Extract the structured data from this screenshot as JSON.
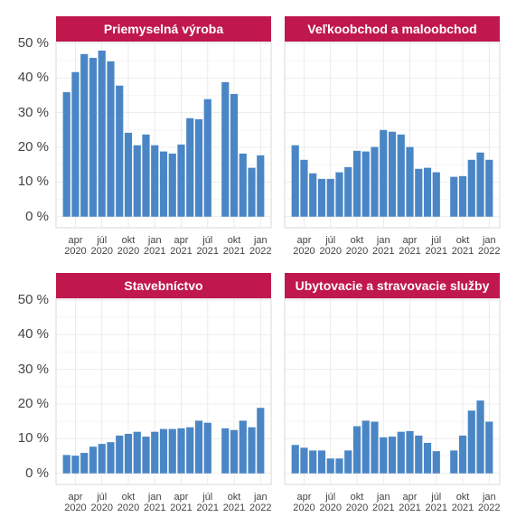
{
  "chart_data": {
    "type": "bar",
    "color": "#4a86c5",
    "header_color": "#c0184d",
    "grid": true,
    "categories": [
      null,
      "apr 2020",
      null,
      null,
      "júl 2020",
      null,
      null,
      "okt 2020",
      null,
      null,
      "jan 2021",
      null,
      null,
      "apr 2021",
      null,
      null,
      "júl 2021",
      null,
      null,
      "okt 2021",
      null,
      null,
      "jan 2022"
    ],
    "ylim": [
      -3.2,
      50.5
    ],
    "yticks": [
      {
        "value": 0,
        "label": "0 %"
      },
      {
        "value": 10,
        "label": "10 %"
      },
      {
        "value": 20,
        "label": "20 %"
      },
      {
        "value": 30,
        "label": "30 %"
      },
      {
        "value": 40,
        "label": "40 %"
      },
      {
        "value": 50,
        "label": "50 %"
      }
    ],
    "panels": [
      {
        "title": "Priemyselná výroba",
        "values": [
          35.9,
          41.7,
          46.9,
          45.8,
          47.9,
          44.8,
          37.8,
          24.2,
          20.6,
          23.7,
          20.6,
          18.8,
          18.2,
          20.8,
          28.4,
          28.1,
          33.9,
          null,
          38.8,
          35.4,
          18.2,
          14.1,
          17.7
        ]
      },
      {
        "title": "Veľkoobchod a maloobchod",
        "values": [
          20.6,
          16.4,
          12.5,
          10.9,
          10.9,
          12.8,
          14.3,
          19.0,
          18.8,
          20.1,
          25.0,
          24.5,
          23.7,
          20.1,
          13.8,
          14.1,
          12.8,
          null,
          11.5,
          11.7,
          16.4,
          18.5,
          16.4
        ]
      },
      {
        "title": "Stavebníctvo",
        "values": [
          5.3,
          5.1,
          5.9,
          7.7,
          8.5,
          9.0,
          10.9,
          11.4,
          12.0,
          10.6,
          12.0,
          12.8,
          12.8,
          13.0,
          13.3,
          15.2,
          14.6,
          null,
          13.0,
          12.5,
          15.2,
          13.3,
          18.9
        ]
      },
      {
        "title": "Ubytovacie a stravovacie služby",
        "values": [
          8.2,
          7.4,
          6.6,
          6.6,
          4.3,
          4.3,
          6.6,
          13.6,
          15.2,
          14.9,
          10.4,
          10.6,
          12.0,
          12.2,
          10.9,
          8.8,
          6.4,
          null,
          6.6,
          10.9,
          18.1,
          21.0,
          14.9
        ]
      }
    ]
  }
}
